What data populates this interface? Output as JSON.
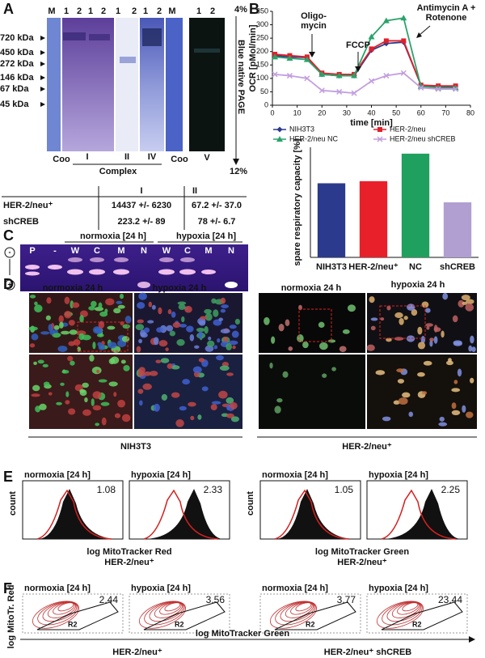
{
  "panel_labels": [
    "A",
    "B",
    "C",
    "D",
    "E",
    "F"
  ],
  "panel_a": {
    "lanes": [
      "M",
      "1",
      "2",
      "1",
      "2",
      "1",
      "2",
      "1",
      "2",
      "M",
      "1",
      "2"
    ],
    "markers": [
      "720 kDa",
      "450 kDa",
      "272 kDa",
      "146 kDa",
      "67 kDa",
      "45 kDa"
    ],
    "bottom_labels": [
      "Coo",
      "I",
      "II",
      "IV",
      "Coo",
      "V"
    ],
    "complex_label": "Complex",
    "gel_label": "Blue native PAGE",
    "top_percent": "4%",
    "bottom_percent": "12%",
    "table": {
      "header": [
        "I",
        "II"
      ],
      "rows": [
        [
          "HER-2/neu⁺",
          "14437 +/- 6230",
          "67.2 +/- 37.0"
        ],
        [
          "shCREB",
          "223.2 +/- 89",
          "78 +/- 6.7"
        ]
      ]
    }
  },
  "panel_c": {
    "conditions": [
      "normoxia [24 h]",
      "hypoxia [24 h]"
    ],
    "lanes": [
      "P",
      "-",
      "W",
      "C",
      "M",
      "N",
      "W",
      "C",
      "M",
      "N"
    ],
    "polarity": [
      "-",
      "+"
    ]
  },
  "panel_d": {
    "conditions": [
      "normoxia 24 h",
      "hypoxia 24 h",
      "normoxia 24 h",
      "hypoxia 24 h"
    ],
    "cell_lines": [
      "NIH3T3",
      "HER-2/neu⁺"
    ]
  },
  "panel_e": {
    "plots": [
      {
        "title": "normoxia [24 h]",
        "value": "1.08"
      },
      {
        "title": "hypoxia [24 h]",
        "value": "2.33"
      },
      {
        "title": "normoxia [24 h]",
        "value": "1.05"
      },
      {
        "title": "hypoxia [24 h]",
        "value": "2.25"
      }
    ],
    "y_label": "count",
    "x_labels": [
      "log MitoTracker Red",
      "log MitoTracker Green"
    ],
    "cell_lines": [
      "HER-2/neu⁺",
      "HER-2/neu⁺"
    ]
  },
  "panel_f": {
    "plots": [
      {
        "title": "normoxia [24 h]",
        "value": "2.44",
        "gate": "R2"
      },
      {
        "title": "hypoxia [24 h]",
        "value": "3.56",
        "gate": "R2"
      },
      {
        "title": "normoxia [24 h]",
        "value": "3.77",
        "gate": "R2"
      },
      {
        "title": "hypoxia [24 h]",
        "value": "23.44",
        "gate": "R2"
      }
    ],
    "y_label": "log MitoTr. Red",
    "x_label": "log MitoTracker Green",
    "cell_lines": [
      "HER-2/neu⁺",
      "HER-2/neu⁺ shCREB"
    ]
  },
  "chart_data": [
    {
      "type": "line",
      "ylabel": "OCR [pMol/min]",
      "xlabel": "time [min]",
      "annotations": [
        "Oligo-\nmycin",
        "FCCP",
        "Antimycin A +\nRotenone"
      ],
      "x": [
        1,
        7,
        14,
        20,
        27,
        33,
        40,
        46,
        53,
        60,
        67,
        74
      ],
      "series": [
        {
          "name": "NIH3T3",
          "color": "#2b3a8c",
          "marker": "diamond",
          "values": [
            185,
            180,
            178,
            115,
            110,
            110,
            205,
            230,
            235,
            75,
            70,
            70
          ]
        },
        {
          "name": "HER-2/neu",
          "color": "#e0202a",
          "marker": "square",
          "values": [
            190,
            185,
            180,
            120,
            115,
            115,
            210,
            240,
            240,
            75,
            72,
            72
          ]
        },
        {
          "name": "HER-2/neu NC",
          "color": "#2aa36b",
          "marker": "triangle",
          "values": [
            180,
            175,
            170,
            115,
            110,
            110,
            255,
            315,
            325,
            70,
            65,
            65
          ]
        },
        {
          "name": "HER-2/neu shCREB",
          "color": "#c29ee0",
          "marker": "cross",
          "values": [
            115,
            110,
            100,
            55,
            50,
            45,
            90,
            110,
            120,
            65,
            60,
            60
          ]
        }
      ],
      "xlim": [
        0,
        80
      ],
      "xticks": [
        0,
        10,
        20,
        30,
        40,
        50,
        60,
        70,
        80
      ],
      "ylim": [
        0,
        350
      ],
      "yticks": [
        0,
        50,
        100,
        150,
        200,
        250,
        300,
        350
      ]
    },
    {
      "type": "bar",
      "ylabel": "spare respiratory capacity [%]",
      "categories": [
        "NIH3T3",
        "HER-2/neu⁺",
        "NC",
        "shCREB"
      ],
      "values": [
        175,
        180,
        245,
        130
      ],
      "colors": [
        "#2b3a8c",
        "#e8202a",
        "#1fa05e",
        "#b09fd0"
      ],
      "ylim": [
        0,
        260
      ]
    }
  ]
}
